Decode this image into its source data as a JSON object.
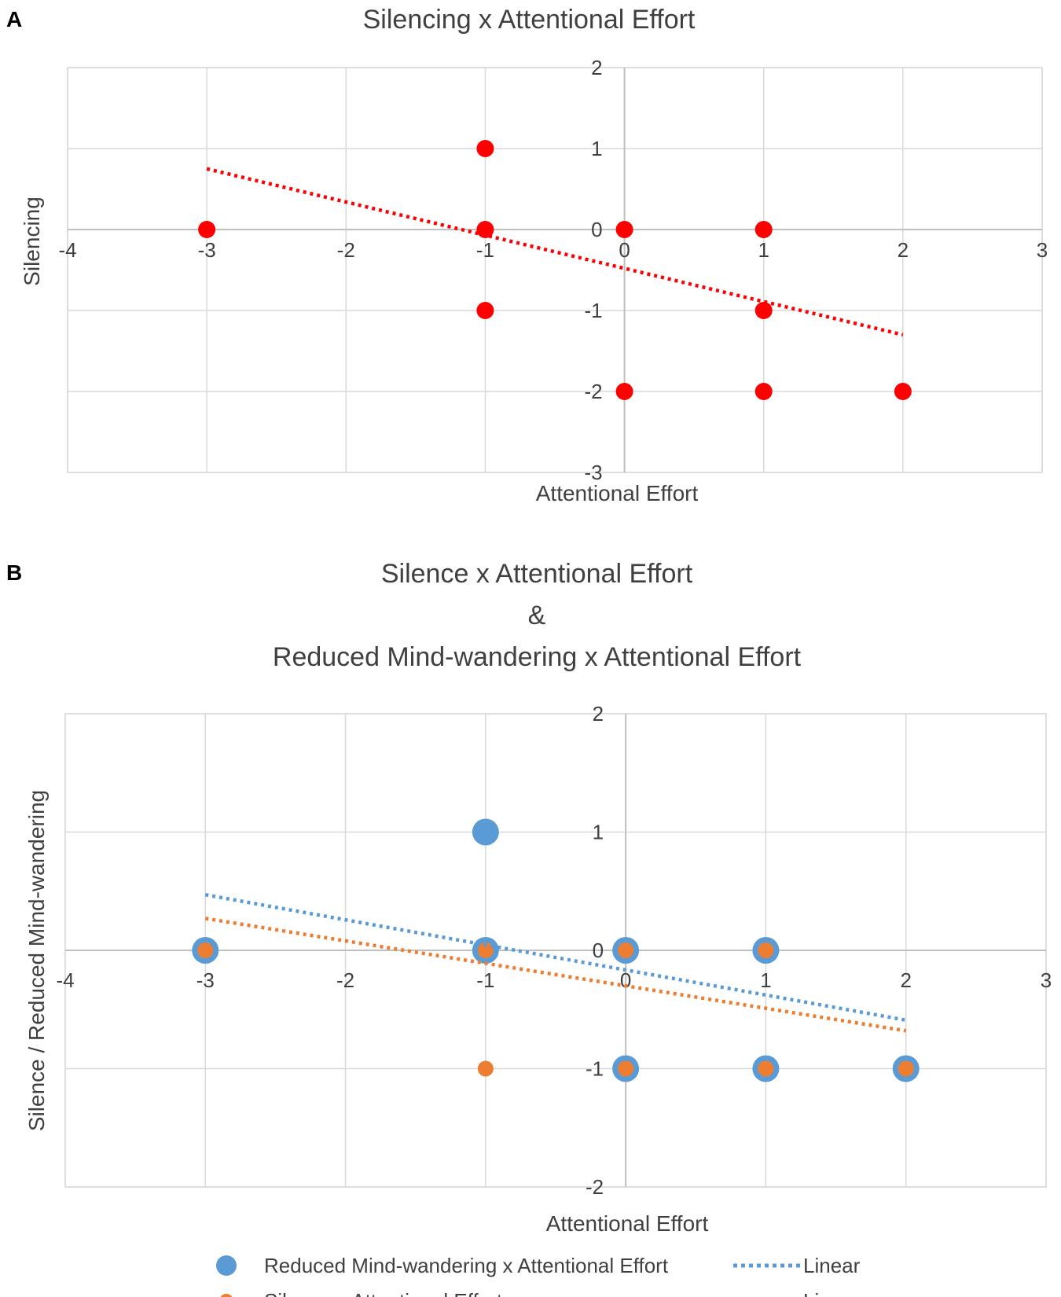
{
  "colors": {
    "grid": "#d9d9d9",
    "axis": "#bfbfbf",
    "text": "#404040",
    "red": "#ff0000",
    "blue": "#5b9bd5",
    "orange": "#ed7d31"
  },
  "chart_data": [
    {
      "panel": "A",
      "type": "scatter",
      "title_lines": [
        "Silencing x Attentional Effort"
      ],
      "xlabel": "Attentional Effort",
      "ylabel": "Silencing",
      "xlim": [
        -4,
        3
      ],
      "ylim": [
        -3,
        2
      ],
      "xticks": [
        -4,
        -3,
        -2,
        -1,
        0,
        1,
        2,
        3
      ],
      "yticks": [
        -3,
        -2,
        -1,
        0,
        1,
        2
      ],
      "grid": true,
      "series": [
        {
          "name": "Silencing x Attentional Effort",
          "color": "#ff0000",
          "points": [
            [
              -3,
              0
            ],
            [
              -1,
              1
            ],
            [
              -1,
              0
            ],
            [
              -1,
              -1
            ],
            [
              0,
              0
            ],
            [
              0,
              -2
            ],
            [
              1,
              0
            ],
            [
              1,
              -1
            ],
            [
              1,
              -2
            ],
            [
              2,
              -2
            ]
          ],
          "trendline": {
            "x_start": -3,
            "y_start": 0.75,
            "x_end": 2,
            "y_end": -1.3
          }
        }
      ]
    },
    {
      "panel": "B",
      "type": "scatter",
      "title_lines": [
        "Silence x Attentional Effort",
        "&",
        "Reduced Mind-wandering x Attentional Effort"
      ],
      "xlabel": "Attentional Effort",
      "ylabel": "Silence / Reduced Mind-wandering",
      "xlim": [
        -4,
        3
      ],
      "ylim": [
        -2,
        2
      ],
      "xticks": [
        -4,
        -3,
        -2,
        -1,
        0,
        1,
        2,
        3
      ],
      "yticks": [
        -2,
        -1,
        0,
        1,
        2
      ],
      "grid": true,
      "legend_position": "bottom",
      "series": [
        {
          "name": "Reduced Mind-wandering x Attentional Effort",
          "color": "#5b9bd5",
          "points": [
            [
              -3,
              0
            ],
            [
              -1,
              1
            ],
            [
              -1,
              0
            ],
            [
              0,
              0
            ],
            [
              0,
              -1
            ],
            [
              1,
              0
            ],
            [
              1,
              -1
            ],
            [
              2,
              -1
            ]
          ],
          "trendline": {
            "x_start": -3,
            "y_start": 0.47,
            "x_end": 2,
            "y_end": -0.59
          },
          "trend_label": "Linear"
        },
        {
          "name": "Silence x Attentional Effort",
          "color": "#ed7d31",
          "points": [
            [
              -3,
              0
            ],
            [
              -1,
              0
            ],
            [
              -1,
              -1
            ],
            [
              0,
              0
            ],
            [
              0,
              -1
            ],
            [
              1,
              0
            ],
            [
              1,
              -1
            ],
            [
              2,
              -1
            ]
          ],
          "trendline": {
            "x_start": -3,
            "y_start": 0.27,
            "x_end": 2,
            "y_end": -0.68
          },
          "trend_label": "Linear"
        }
      ]
    }
  ]
}
